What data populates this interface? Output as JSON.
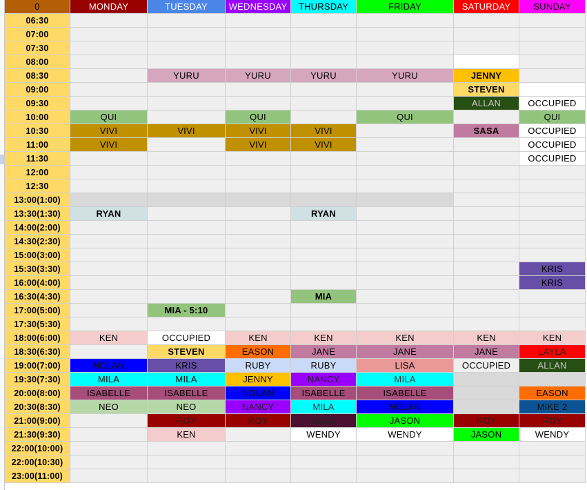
{
  "headers": [
    {
      "label": "0",
      "bg": "#b45f06",
      "color": "#000000"
    },
    {
      "label": "MONDAY",
      "bg": "#990000",
      "color": "#ffffff"
    },
    {
      "label": "TUESDAY",
      "bg": "#4a86e8",
      "color": "#ffffff"
    },
    {
      "label": "WEDNESDAY",
      "bg": "#9900ff",
      "color": "#ffffff"
    },
    {
      "label": "THURSDAY",
      "bg": "#00ffff",
      "color": "#000000"
    },
    {
      "label": "FRIDAY",
      "bg": "#00ff00",
      "color": "#000000"
    },
    {
      "label": "SATURDAY",
      "bg": "#ff0000",
      "color": "#ffffff"
    },
    {
      "label": "SUNDAY",
      "bg": "#ff00ff",
      "color": "#000000"
    }
  ],
  "times": [
    "06:30",
    "07:00",
    "07:30",
    "08:00",
    "08:30",
    "09:00",
    "09:30",
    "10:00",
    "10:30",
    "11:00",
    "11:30",
    "12:00",
    "12:30",
    "13:00(1:00)",
    "13:30(1:30)",
    "14:00(2:00)",
    "14:30(2:30)",
    "15:00(3:00)",
    "15:30(3:30)",
    "16:00(4:00)",
    "16:30(4:30)",
    "17:00(5:00)",
    "17:30(5:30)",
    "18:00(6:00)",
    "18:30(6:30)",
    "19:00(7:00)",
    "19:30(7:30)",
    "20:00(8:00)",
    "20:30(8:30)",
    "21:00(9:00)",
    "21:30(9:30)",
    "22:00(10:00)",
    "22:00(10:30)",
    "23:00(11:00)"
  ],
  "time_bg": "#ffd966",
  "default_bg": "#efefef",
  "entries": [
    {
      "row": 3,
      "col": 6,
      "text": "",
      "bg": "#ffffff"
    },
    {
      "row": 4,
      "col": 2,
      "text": "YURU",
      "bg": "#d5a6bd"
    },
    {
      "row": 4,
      "col": 3,
      "text": "YURU",
      "bg": "#d5a6bd"
    },
    {
      "row": 4,
      "col": 4,
      "text": "YURU",
      "bg": "#d5a6bd"
    },
    {
      "row": 4,
      "col": 5,
      "text": "YURU",
      "bg": "#d5a6bd"
    },
    {
      "row": 4,
      "col": 6,
      "text": "JENNY",
      "bg": "#ffc000",
      "bold": true
    },
    {
      "row": 5,
      "col": 6,
      "text": "STEVEN",
      "bg": "#ffd966",
      "bold": true
    },
    {
      "row": 5,
      "col": 7,
      "text": "",
      "bg": "#ffffff"
    },
    {
      "row": 6,
      "col": 6,
      "text": "ALLAN",
      "bg": "#274e13",
      "color": "#cccccc"
    },
    {
      "row": 6,
      "col": 7,
      "text": "OCCUPIED",
      "bg": "#ffffff"
    },
    {
      "row": 7,
      "col": 1,
      "text": "QUI",
      "bg": "#93c47d"
    },
    {
      "row": 7,
      "col": 3,
      "text": "QUI",
      "bg": "#93c47d"
    },
    {
      "row": 7,
      "col": 5,
      "text": "QUI",
      "bg": "#93c47d"
    },
    {
      "row": 7,
      "col": 7,
      "text": "QUI",
      "bg": "#93c47d"
    },
    {
      "row": 8,
      "col": 1,
      "text": "VIVI",
      "bg": "#bf9000"
    },
    {
      "row": 8,
      "col": 2,
      "text": "VIVI",
      "bg": "#bf9000"
    },
    {
      "row": 8,
      "col": 3,
      "text": "VIVI",
      "bg": "#bf9000"
    },
    {
      "row": 8,
      "col": 4,
      "text": "VIVI",
      "bg": "#bf9000"
    },
    {
      "row": 8,
      "col": 6,
      "text": "SASA",
      "bg": "#c27ba0",
      "bold": true
    },
    {
      "row": 8,
      "col": 7,
      "text": "OCCUPIED",
      "bg": "#ffffff"
    },
    {
      "row": 9,
      "col": 1,
      "text": "VIVI",
      "bg": "#bf9000"
    },
    {
      "row": 9,
      "col": 3,
      "text": "VIVI",
      "bg": "#bf9000"
    },
    {
      "row": 9,
      "col": 4,
      "text": "VIVI",
      "bg": "#bf9000"
    },
    {
      "row": 9,
      "col": 7,
      "text": "OCCUPIED",
      "bg": "#ffffff"
    },
    {
      "row": 10,
      "col": 7,
      "text": "OCCUPIED",
      "bg": "#ffffff"
    },
    {
      "row": 13,
      "col": 1,
      "text": "",
      "bg": "#d9d9d9"
    },
    {
      "row": 13,
      "col": 2,
      "text": "",
      "bg": "#d9d9d9"
    },
    {
      "row": 13,
      "col": 3,
      "text": "",
      "bg": "#d9d9d9"
    },
    {
      "row": 13,
      "col": 4,
      "text": "",
      "bg": "#d9d9d9"
    },
    {
      "row": 13,
      "col": 5,
      "text": "",
      "bg": "#d9d9d9"
    },
    {
      "row": 14,
      "col": 1,
      "text": "RYAN",
      "bg": "#d0e0e3",
      "bold": true
    },
    {
      "row": 14,
      "col": 4,
      "text": "RYAN",
      "bg": "#d0e0e3",
      "bold": true
    },
    {
      "row": 18,
      "col": 7,
      "text": "KRIS",
      "bg": "#674ea7"
    },
    {
      "row": 19,
      "col": 7,
      "text": "KRIS",
      "bg": "#674ea7"
    },
    {
      "row": 20,
      "col": 4,
      "text": "MIA",
      "bg": "#93c47d",
      "bold": true
    },
    {
      "row": 21,
      "col": 2,
      "text": "MIA - 5:10",
      "bg": "#93c47d",
      "bold": true
    },
    {
      "row": 23,
      "col": 1,
      "text": "KEN",
      "bg": "#f4cccc"
    },
    {
      "row": 23,
      "col": 2,
      "text": "OCCUPIED",
      "bg": "#ffffff"
    },
    {
      "row": 23,
      "col": 3,
      "text": "KEN",
      "bg": "#f4cccc"
    },
    {
      "row": 23,
      "col": 4,
      "text": "KEN",
      "bg": "#f4cccc"
    },
    {
      "row": 23,
      "col": 5,
      "text": "KEN",
      "bg": "#f4cccc"
    },
    {
      "row": 23,
      "col": 6,
      "text": "KEN",
      "bg": "#f4cccc"
    },
    {
      "row": 23,
      "col": 7,
      "text": "KEN",
      "bg": "#f4cccc"
    },
    {
      "row": 24,
      "col": 2,
      "text": "STEVEN",
      "bg": "#ffd966",
      "bold": true
    },
    {
      "row": 24,
      "col": 3,
      "text": "EASON",
      "bg": "#ff6d01"
    },
    {
      "row": 24,
      "col": 4,
      "text": "JANE",
      "bg": "#c27ba0"
    },
    {
      "row": 24,
      "col": 5,
      "text": "JANE",
      "bg": "#c27ba0"
    },
    {
      "row": 24,
      "col": 6,
      "text": "JANE",
      "bg": "#c27ba0"
    },
    {
      "row": 24,
      "col": 7,
      "text": "LAYLA",
      "bg": "#ff0000",
      "color": "#222222"
    },
    {
      "row": 25,
      "col": 1,
      "text": "NOLAN",
      "bg": "#0000ff",
      "color": "#111111"
    },
    {
      "row": 25,
      "col": 2,
      "text": "KRIS",
      "bg": "#674ea7"
    },
    {
      "row": 25,
      "col": 3,
      "text": "RUBY",
      "bg": "#c9daf8"
    },
    {
      "row": 25,
      "col": 4,
      "text": "RUBY",
      "bg": "#c9daf8"
    },
    {
      "row": 25,
      "col": 5,
      "text": "LISA",
      "bg": "#ea9999"
    },
    {
      "row": 25,
      "col": 6,
      "text": "OCCUPIED",
      "bg": "#efefef"
    },
    {
      "row": 25,
      "col": 7,
      "text": "ALLAN",
      "bg": "#274e13",
      "color": "#cccccc"
    },
    {
      "row": 26,
      "col": 1,
      "text": "MILA",
      "bg": "#00ffff"
    },
    {
      "row": 26,
      "col": 2,
      "text": "MILA",
      "bg": "#00ffff"
    },
    {
      "row": 26,
      "col": 3,
      "text": "JENNY",
      "bg": "#ffc000"
    },
    {
      "row": 26,
      "col": 4,
      "text": "NANCY",
      "bg": "#9900ff",
      "color": "#222222"
    },
    {
      "row": 26,
      "col": 5,
      "text": "MILA",
      "bg": "#00ffff",
      "color": "#333333"
    },
    {
      "row": 26,
      "col": 6,
      "text": "",
      "bg": "#d9d9d9"
    },
    {
      "row": 26,
      "col": 7,
      "text": "",
      "bg": "#d9d9d9"
    },
    {
      "row": 27,
      "col": 1,
      "text": "ISABELLE",
      "bg": "#a64d79"
    },
    {
      "row": 27,
      "col": 2,
      "text": "ISABELLE",
      "bg": "#a64d79"
    },
    {
      "row": 27,
      "col": 3,
      "text": "NOLAN",
      "bg": "#0000ff",
      "color": "#111111"
    },
    {
      "row": 27,
      "col": 4,
      "text": "ISABELLE",
      "bg": "#a64d79"
    },
    {
      "row": 27,
      "col": 5,
      "text": "ISABELLE",
      "bg": "#a64d79"
    },
    {
      "row": 27,
      "col": 6,
      "text": "",
      "bg": "#d9d9d9"
    },
    {
      "row": 27,
      "col": 7,
      "text": "EASON",
      "bg": "#ff6d01"
    },
    {
      "row": 28,
      "col": 1,
      "text": "NEO",
      "bg": "#b6d7a8"
    },
    {
      "row": 28,
      "col": 2,
      "text": "NEO",
      "bg": "#b6d7a8"
    },
    {
      "row": 28,
      "col": 3,
      "text": "NANCY",
      "bg": "#9900ff",
      "color": "#222222"
    },
    {
      "row": 28,
      "col": 4,
      "text": "MILA",
      "bg": "#00ffff",
      "color": "#333333"
    },
    {
      "row": 28,
      "col": 5,
      "text": "NOLAN",
      "bg": "#0000ff",
      "color": "#111111"
    },
    {
      "row": 28,
      "col": 6,
      "text": "",
      "bg": "#d9d9d9"
    },
    {
      "row": 28,
      "col": 7,
      "text": "MIKE 2",
      "bg": "#0b5394",
      "color": "#111111"
    },
    {
      "row": 29,
      "col": 2,
      "text": "ROY",
      "bg": "#990000",
      "color": "#222222"
    },
    {
      "row": 29,
      "col": 3,
      "text": "ROY",
      "bg": "#990000",
      "color": "#222222"
    },
    {
      "row": 29,
      "col": 4,
      "text": "SASA",
      "bg": "#4c1130",
      "color": "#222222"
    },
    {
      "row": 29,
      "col": 5,
      "text": "JASON",
      "bg": "#00ff00"
    },
    {
      "row": 29,
      "col": 6,
      "text": "ROY",
      "bg": "#990000",
      "color": "#222222"
    },
    {
      "row": 29,
      "col": 7,
      "text": "ROY",
      "bg": "#990000",
      "color": "#222222"
    },
    {
      "row": 30,
      "col": 2,
      "text": "KEN",
      "bg": "#f4cccc"
    },
    {
      "row": 30,
      "col": 4,
      "text": "WENDY",
      "bg": "#ffffff"
    },
    {
      "row": 30,
      "col": 5,
      "text": "WENDY",
      "bg": "#ffffff"
    },
    {
      "row": 30,
      "col": 6,
      "text": "JASON",
      "bg": "#00ff00"
    },
    {
      "row": 30,
      "col": 7,
      "text": "WENDY",
      "bg": "#ffffff"
    }
  ]
}
